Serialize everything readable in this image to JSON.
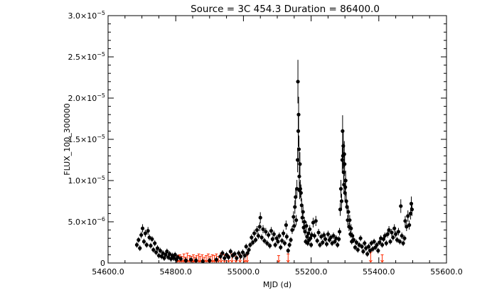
{
  "chart_data": {
    "type": "scatter",
    "title": "Source = 3C 454.3 Duration = 86400.0",
    "xlabel": "MJD (d)",
    "ylabel": "FLUX_100_300000",
    "xlim": [
      54600,
      55600
    ],
    "ylim": [
      0,
      3e-05
    ],
    "x_ticks": [
      54600,
      54800,
      55000,
      55200,
      55400,
      55600
    ],
    "x_tick_labels": [
      "54600.0",
      "54800.0",
      "55000.0",
      "55200.0",
      "55400.0",
      "55600.0"
    ],
    "y_ticks": [
      0,
      5e-06,
      1e-05,
      1.5e-05,
      2e-05,
      2.5e-05,
      3e-05
    ],
    "y_tick_labels": [
      {
        "mantissa": "0",
        "exp": ""
      },
      {
        "mantissa": "5.0×10",
        "exp": "−6"
      },
      {
        "mantissa": "1.0×10",
        "exp": "−5"
      },
      {
        "mantissa": "1.5×10",
        "exp": "−5"
      },
      {
        "mantissa": "2.0×10",
        "exp": "−5"
      },
      {
        "mantissa": "2.5×10",
        "exp": "−5"
      },
      {
        "mantissa": "3.0×10",
        "exp": "−5"
      }
    ],
    "grid": false,
    "colors": {
      "detections": "#000000",
      "upper_limits": "#ff2a00"
    },
    "series": [
      {
        "marker": "filled-circle-with-errorbar",
        "points": [
          [
            54685,
            2.2e-06
          ],
          [
            54690,
            2.8e-06
          ],
          [
            54694,
            1.8e-06
          ],
          [
            54698,
            3.4e-06
          ],
          [
            54702,
            4.2e-06
          ],
          [
            54706,
            2.6e-06
          ],
          [
            54710,
            3.6e-06
          ],
          [
            54714,
            2.2e-06
          ],
          [
            54718,
            3.9e-06
          ],
          [
            54722,
            3.1e-06
          ],
          [
            54726,
            2.1e-06
          ],
          [
            54730,
            2.9e-06
          ],
          [
            54734,
            1.6e-06
          ],
          [
            54738,
            2.4e-06
          ],
          [
            54742,
            1.3e-06
          ],
          [
            54746,
            1.8e-06
          ],
          [
            54750,
            9e-07
          ],
          [
            54754,
            1.5e-06
          ],
          [
            54758,
            8e-07
          ],
          [
            54762,
            1.2e-06
          ],
          [
            54766,
            6e-07
          ],
          [
            54770,
            1e-06
          ],
          [
            54774,
            1.4e-06
          ],
          [
            54778,
            7e-07
          ],
          [
            54782,
            1.1e-06
          ],
          [
            54786,
            5e-07
          ],
          [
            54790,
            9e-07
          ],
          [
            54794,
            6e-07
          ],
          [
            54798,
            1e-06
          ],
          [
            54802,
            4e-07
          ],
          [
            54806,
            7e-07
          ],
          [
            54815,
            5e-07
          ],
          [
            54830,
            3e-07
          ],
          [
            54845,
            4e-07
          ],
          [
            54860,
            3e-07
          ],
          [
            54880,
            2e-07
          ],
          [
            54900,
            3e-07
          ],
          [
            54920,
            4e-07
          ],
          [
            54932,
            8e-07
          ],
          [
            54938,
            1.2e-06
          ],
          [
            54944,
            6e-07
          ],
          [
            54950,
            1e-06
          ],
          [
            54956,
            7e-07
          ],
          [
            54962,
            1.4e-06
          ],
          [
            54968,
            9e-07
          ],
          [
            54974,
            1.1e-06
          ],
          [
            54980,
            6e-07
          ],
          [
            54986,
            1.2e-06
          ],
          [
            54992,
            8e-07
          ],
          [
            54998,
            1.3e-06
          ],
          [
            55004,
            9e-07
          ],
          [
            55008,
            2e-06
          ],
          [
            55012,
            1.2e-06
          ],
          [
            55016,
            1.6e-06
          ],
          [
            55020,
            2.2e-06
          ],
          [
            55024,
            3.1e-06
          ],
          [
            55028,
            2.5e-06
          ],
          [
            55032,
            3.6e-06
          ],
          [
            55036,
            2.8e-06
          ],
          [
            55040,
            4e-06
          ],
          [
            55044,
            3.3e-06
          ],
          [
            55048,
            4.4e-06
          ],
          [
            55050,
            5.5e-06
          ],
          [
            55054,
            3.1e-06
          ],
          [
            55058,
            4.1e-06
          ],
          [
            55062,
            2.7e-06
          ],
          [
            55066,
            3.8e-06
          ],
          [
            55070,
            2.4e-06
          ],
          [
            55074,
            3.4e-06
          ],
          [
            55078,
            2.1e-06
          ],
          [
            55082,
            3.9e-06
          ],
          [
            55086,
            2.9e-06
          ],
          [
            55090,
            3.5e-06
          ],
          [
            55094,
            2.2e-06
          ],
          [
            55098,
            3e-06
          ],
          [
            55102,
            2.6e-06
          ],
          [
            55106,
            3.3e-06
          ],
          [
            55110,
            1.9e-06
          ],
          [
            55114,
            2.7e-06
          ],
          [
            55118,
            3.6e-06
          ],
          [
            55122,
            2.4e-06
          ],
          [
            55126,
            4.6e-06
          ],
          [
            55128,
            3.2e-06
          ],
          [
            55132,
            1.5e-06
          ],
          [
            55136,
            2.2e-06
          ],
          [
            55140,
            2.8e-06
          ],
          [
            55144,
            4e-06
          ],
          [
            55148,
            5.6e-06
          ],
          [
            55150,
            4.5e-06
          ],
          [
            55152,
            6.8e-06
          ],
          [
            55154,
            8e-06
          ],
          [
            55156,
            5.2e-06
          ],
          [
            55158,
            9e-06
          ],
          [
            55160,
            1.25e-05
          ],
          [
            55161,
            2.2e-05
          ],
          [
            55162,
            1.6e-05
          ],
          [
            55163,
            1.8e-05
          ],
          [
            55164,
            1.38e-05
          ],
          [
            55165,
            1.05e-05
          ],
          [
            55166,
            8.8e-06
          ],
          [
            55167,
            1.2e-05
          ],
          [
            55168,
            9e-06
          ],
          [
            55170,
            8.5e-06
          ],
          [
            55172,
            7e-06
          ],
          [
            55174,
            5.5e-06
          ],
          [
            55176,
            6.2e-06
          ],
          [
            55178,
            4.3e-06
          ],
          [
            55180,
            5e-06
          ],
          [
            55182,
            3.8e-06
          ],
          [
            55184,
            2.6e-06
          ],
          [
            55186,
            4.5e-06
          ],
          [
            55188,
            3.2e-06
          ],
          [
            55190,
            2.4e-06
          ],
          [
            55192,
            3.6e-06
          ],
          [
            55194,
            2.8e-06
          ],
          [
            55196,
            4.1e-06
          ],
          [
            55198,
            3e-06
          ],
          [
            55200,
            2.2e-06
          ],
          [
            55202,
            3.4e-06
          ],
          [
            55206,
            4.9e-06
          ],
          [
            55210,
            3.3e-06
          ],
          [
            55214,
            5.1e-06
          ],
          [
            55218,
            2.7e-06
          ],
          [
            55222,
            3.7e-06
          ],
          [
            55226,
            2.2e-06
          ],
          [
            55230,
            3.2e-06
          ],
          [
            55234,
            2.5e-06
          ],
          [
            55238,
            3.4e-06
          ],
          [
            55242,
            2.9e-06
          ],
          [
            55246,
            2.3e-06
          ],
          [
            55250,
            3.5e-06
          ],
          [
            55254,
            2.8e-06
          ],
          [
            55258,
            3.1e-06
          ],
          [
            55262,
            2.4e-06
          ],
          [
            55266,
            3.3e-06
          ],
          [
            55270,
            2.6e-06
          ],
          [
            55274,
            3e-06
          ],
          [
            55278,
            2.2e-06
          ],
          [
            55282,
            2.9e-06
          ],
          [
            55284,
            3.8e-06
          ],
          [
            55286,
            6.5e-06
          ],
          [
            55288,
            9e-06
          ],
          [
            55290,
            7.5e-06
          ],
          [
            55292,
            1.25e-05
          ],
          [
            55293,
            1.6e-05
          ],
          [
            55294,
            1.3e-05
          ],
          [
            55295,
            1.42e-05
          ],
          [
            55296,
            1.1e-05
          ],
          [
            55297,
            9.5e-06
          ],
          [
            55298,
            1.32e-05
          ],
          [
            55299,
            1.2e-05
          ],
          [
            55300,
            8.5e-06
          ],
          [
            55301,
            9.2e-06
          ],
          [
            55302,
            1e-05
          ],
          [
            55304,
            7.5e-06
          ],
          [
            55306,
            6.8e-06
          ],
          [
            55308,
            5.2e-06
          ],
          [
            55310,
            6.2e-06
          ],
          [
            55312,
            4.4e-06
          ],
          [
            55314,
            5.2e-06
          ],
          [
            55316,
            3.5e-06
          ],
          [
            55318,
            4.2e-06
          ],
          [
            55320,
            2.6e-06
          ],
          [
            55322,
            3.3e-06
          ],
          [
            55326,
            2.8e-06
          ],
          [
            55330,
            1.9e-06
          ],
          [
            55334,
            2.5e-06
          ],
          [
            55338,
            1.6e-06
          ],
          [
            55342,
            2.2e-06
          ],
          [
            55346,
            3e-06
          ],
          [
            55350,
            2e-06
          ],
          [
            55354,
            1.4e-06
          ],
          [
            55358,
            2.4e-06
          ],
          [
            55362,
            1.8e-06
          ],
          [
            55366,
            1.1e-06
          ],
          [
            55370,
            2e-06
          ],
          [
            55374,
            1.5e-06
          ],
          [
            55378,
            2.4e-06
          ],
          [
            55382,
            1.7e-06
          ],
          [
            55386,
            2.6e-06
          ],
          [
            55390,
            1.9e-06
          ],
          [
            55394,
            2.2e-06
          ],
          [
            55398,
            1.5e-06
          ],
          [
            55402,
            2.5e-06
          ],
          [
            55406,
            3e-06
          ],
          [
            55410,
            2.2e-06
          ],
          [
            55414,
            2.9e-06
          ],
          [
            55418,
            3.3e-06
          ],
          [
            55422,
            2.4e-06
          ],
          [
            55426,
            3.5e-06
          ],
          [
            55430,
            4e-06
          ],
          [
            55434,
            2.6e-06
          ],
          [
            55438,
            3.7e-06
          ],
          [
            55442,
            3.1e-06
          ],
          [
            55446,
            4.2e-06
          ],
          [
            55450,
            3.5e-06
          ],
          [
            55454,
            2.8e-06
          ],
          [
            55458,
            3.8e-06
          ],
          [
            55462,
            2.6e-06
          ],
          [
            55465,
            6.9e-06
          ],
          [
            55468,
            3.3e-06
          ],
          [
            55472,
            2.4e-06
          ],
          [
            55476,
            3e-06
          ],
          [
            55478,
            5.1e-06
          ],
          [
            55482,
            4.4e-06
          ],
          [
            55486,
            5.7e-06
          ],
          [
            55490,
            4.6e-06
          ],
          [
            55494,
            6e-06
          ],
          [
            55496,
            7.2e-06
          ],
          [
            55498,
            6.5e-06
          ]
        ]
      },
      {
        "marker": "upper-limit-arrow",
        "points": [
          [
            54806,
            9e-07
          ],
          [
            54812,
            1e-06
          ],
          [
            54818,
            8e-07
          ],
          [
            54824,
            1.1e-06
          ],
          [
            54828,
            7e-07
          ],
          [
            54834,
            1.2e-06
          ],
          [
            54840,
            9e-07
          ],
          [
            54846,
            8e-07
          ],
          [
            54852,
            1e-06
          ],
          [
            54856,
            7e-07
          ],
          [
            54862,
            9e-07
          ],
          [
            54868,
            1.1e-06
          ],
          [
            54872,
            8e-07
          ],
          [
            54878,
            1e-06
          ],
          [
            54884,
            7e-07
          ],
          [
            54890,
            9e-07
          ],
          [
            54896,
            1.1e-06
          ],
          [
            54902,
            8e-07
          ],
          [
            54908,
            1e-06
          ],
          [
            54914,
            9e-07
          ],
          [
            54920,
            1.1e-06
          ],
          [
            54926,
            8e-07
          ],
          [
            54934,
            1.2e-06
          ],
          [
            54944,
            1e-06
          ],
          [
            54956,
            9e-07
          ],
          [
            54966,
            1.1e-06
          ],
          [
            54978,
            8e-07
          ],
          [
            54990,
            1e-06
          ],
          [
            55004,
            9e-07
          ],
          [
            55011,
            1e-06
          ],
          [
            55104,
            9e-07
          ],
          [
            55132,
            1.1e-06
          ],
          [
            55376,
            1.3e-06
          ],
          [
            55410,
            1e-06
          ]
        ]
      }
    ]
  }
}
